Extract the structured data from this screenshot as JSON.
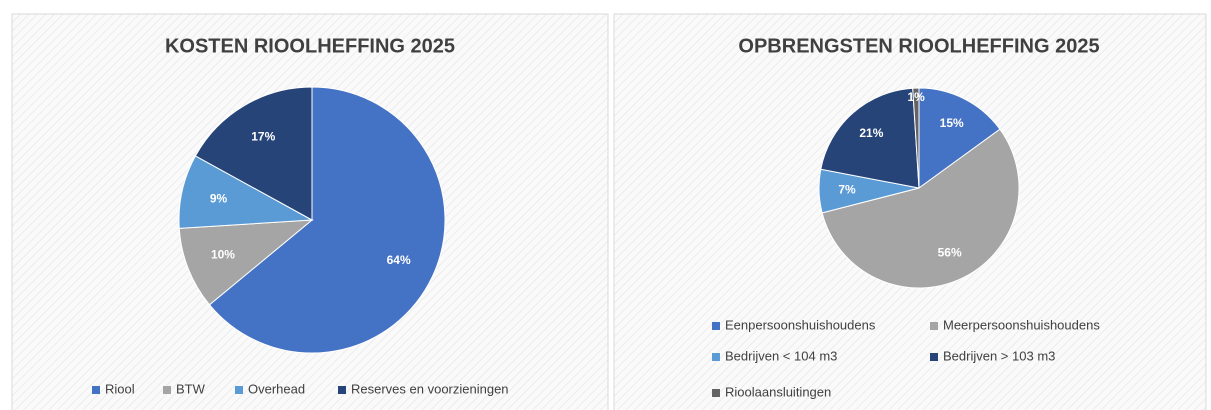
{
  "chart_data": [
    {
      "type": "pie",
      "title": "KOSTEN RIOOLHEFFING 2025",
      "categories": [
        "Riool",
        "BTW",
        "Overhead",
        "Reserves en voorzieningen"
      ],
      "values": [
        64,
        10,
        9,
        17
      ],
      "value_labels": [
        "64%",
        "10%",
        "9%",
        "17%"
      ],
      "colors": [
        "#4472c4",
        "#a5a5a5",
        "#5b9bd5",
        "#264478"
      ],
      "legend": "bottom"
    },
    {
      "type": "pie",
      "title": "OPBRENGSTEN RIOOLHEFFING 2025",
      "categories": [
        "Eenpersoonshuishoudens",
        "Meerpersoonshuishoudens",
        "Bedrijven < 104 m3",
        "Bedrijven > 103 m3",
        "Rioolaansluitingen"
      ],
      "values": [
        15,
        56,
        7,
        21,
        1
      ],
      "value_labels": [
        "15%",
        "56%",
        "7%",
        "21%",
        "1%"
      ],
      "colors": [
        "#4472c4",
        "#a5a5a5",
        "#5b9bd5",
        "#264478",
        "#636363"
      ],
      "legend": "bottom"
    }
  ]
}
